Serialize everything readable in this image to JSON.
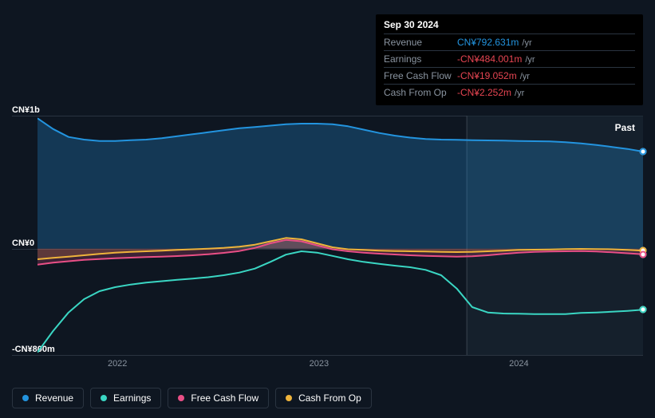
{
  "tooltip": {
    "date": "Sep 30 2024",
    "rows": [
      {
        "label": "Revenue",
        "value": "CN¥792.631m",
        "suffix": "/yr",
        "color": "#2394df"
      },
      {
        "label": "Earnings",
        "value": "-CN¥484.001m",
        "suffix": "/yr",
        "color": "#e64552"
      },
      {
        "label": "Free Cash Flow",
        "value": "-CN¥19.052m",
        "suffix": "/yr",
        "color": "#e64552"
      },
      {
        "label": "Cash From Op",
        "value": "-CN¥2.252m",
        "suffix": "/yr",
        "color": "#e64552"
      }
    ]
  },
  "chart": {
    "type": "area",
    "background_color": "#0e1621",
    "grid_color": "#2a3440",
    "past_label": "Past",
    "past_region_color": "#1b2833",
    "y_axis": {
      "min": -800,
      "max": 1000,
      "ticks": [
        {
          "value": 1000,
          "label": "CN¥1b"
        },
        {
          "value": 0,
          "label": "CN¥0"
        },
        {
          "value": -800,
          "label": "-CN¥800m"
        }
      ],
      "label_fontsize": 11,
      "label_color": "#ffffff"
    },
    "x_axis": {
      "labels": [
        {
          "pos": 0.132,
          "label": "2022"
        },
        {
          "pos": 0.465,
          "label": "2023"
        },
        {
          "pos": 0.795,
          "label": "2024"
        }
      ],
      "label_fontsize": 11,
      "label_color": "#8a94a0"
    },
    "cursor_x": 0.709,
    "series": [
      {
        "name": "Revenue",
        "color": "#2394df",
        "fill_opacity": 0.28,
        "line_width": 2,
        "data": [
          980,
          900,
          840,
          820,
          810,
          810,
          815,
          820,
          830,
          845,
          860,
          875,
          890,
          905,
          915,
          925,
          935,
          940,
          940,
          935,
          920,
          895,
          870,
          850,
          835,
          825,
          820,
          818,
          816,
          814,
          812,
          810,
          808,
          806,
          800,
          792,
          780,
          765,
          750,
          730
        ]
      },
      {
        "name": "Cash From Op",
        "color": "#eeb33b",
        "fill_opacity": 0.18,
        "line_width": 2,
        "data": [
          -80,
          -70,
          -60,
          -50,
          -40,
          -30,
          -25,
          -20,
          -15,
          -10,
          -5,
          0,
          5,
          15,
          30,
          55,
          80,
          70,
          40,
          10,
          -5,
          -10,
          -15,
          -18,
          -20,
          -22,
          -24,
          -26,
          -25,
          -20,
          -15,
          -10,
          -8,
          -6,
          -4,
          -2,
          -3,
          -5,
          -10,
          -15
        ]
      },
      {
        "name": "Free Cash Flow",
        "color": "#e94f86",
        "fill_opacity": 0.22,
        "line_width": 2,
        "data": [
          -120,
          -105,
          -95,
          -85,
          -78,
          -72,
          -68,
          -64,
          -60,
          -56,
          -50,
          -42,
          -32,
          -18,
          5,
          40,
          65,
          55,
          25,
          -5,
          -20,
          -30,
          -38,
          -44,
          -50,
          -55,
          -58,
          -60,
          -58,
          -50,
          -40,
          -30,
          -25,
          -22,
          -20,
          -19,
          -22,
          -28,
          -35,
          -42
        ]
      },
      {
        "name": "Earnings",
        "color": "#3ad6c3",
        "fill_opacity": 0.0,
        "line_width": 2,
        "data": [
          -780,
          -620,
          -480,
          -380,
          -320,
          -290,
          -270,
          -255,
          -245,
          -235,
          -225,
          -215,
          -200,
          -180,
          -150,
          -100,
          -45,
          -20,
          -30,
          -55,
          -80,
          -100,
          -115,
          -128,
          -140,
          -160,
          -200,
          -300,
          -440,
          -480,
          -488,
          -490,
          -492,
          -493,
          -492,
          -484,
          -480,
          -475,
          -468,
          -460
        ]
      }
    ],
    "markers": [
      {
        "x": 1.0,
        "y": 730,
        "color": "#2394df"
      },
      {
        "x": 1.0,
        "y": -15,
        "color": "#eeb33b"
      },
      {
        "x": 1.0,
        "y": -42,
        "color": "#e94f86"
      },
      {
        "x": 1.0,
        "y": -460,
        "color": "#3ad6c3"
      }
    ]
  },
  "legend": [
    {
      "label": "Revenue",
      "color": "#2394df"
    },
    {
      "label": "Earnings",
      "color": "#3ad6c3"
    },
    {
      "label": "Free Cash Flow",
      "color": "#e94f86"
    },
    {
      "label": "Cash From Op",
      "color": "#eeb33b"
    }
  ]
}
